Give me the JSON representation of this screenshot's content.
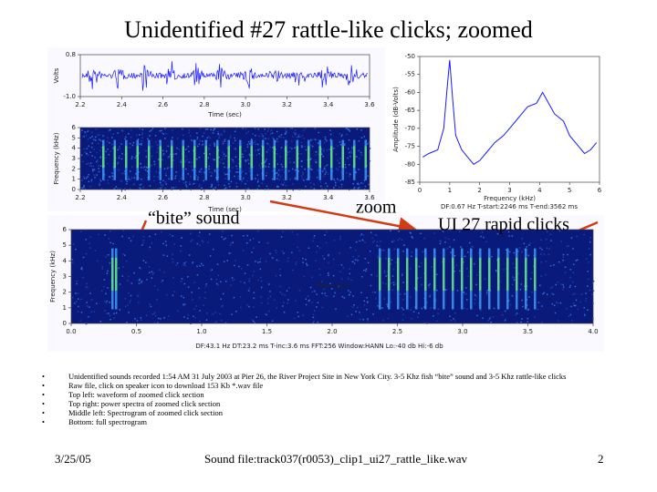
{
  "title": "Unidentified #27 rattle-like clicks; zoomed",
  "waveform": {
    "y_label": "Volts",
    "x_label": "Time (sec)",
    "ylim": [
      -1,
      0.8
    ],
    "yticks": [
      0.8,
      {
        "value": -1,
        "label": "-1.0"
      }
    ],
    "xlim": [
      2.2,
      3.6
    ],
    "xticks": [
      2.2,
      2.4,
      2.6,
      2.8,
      {
        "value": 3,
        "label": "3.0"
      },
      3.2,
      3.4,
      3.6
    ]
  },
  "spectrogram_zoom": {
    "y_label": "Frequency (kHz)",
    "x_label": "Time (sec)",
    "ylim": [
      0,
      6
    ],
    "yticks": [
      0,
      1,
      2,
      3,
      4,
      5,
      6
    ],
    "xlim": [
      2.2,
      3.6
    ],
    "xticks": [
      2.2,
      2.4,
      2.6,
      2.8,
      {
        "value": 3,
        "label": "3.0"
      },
      3.2,
      3.4,
      3.6
    ]
  },
  "spectrum": {
    "type": "line",
    "color": "#1a1aff",
    "y_label": "Amplitude (dB-Volts)",
    "x_label": "Frequency (kHz)",
    "info": "DF:0.67 Hz  T-start:2246 ms  T-end:3562 ms",
    "x": [
      0.1,
      0.3,
      0.6,
      0.8,
      0.9,
      1.0,
      1.1,
      1.2,
      1.4,
      1.6,
      1.8,
      2.0,
      2.2,
      2.5,
      2.8,
      3.0,
      3.3,
      3.6,
      3.9,
      4.1,
      4.3,
      4.5,
      4.8,
      5.0,
      5.3,
      5.5,
      5.7,
      5.9
    ],
    "values": [
      -78,
      -77,
      -76,
      -70,
      -60,
      -51,
      -62,
      -72,
      -76,
      -78,
      -80,
      -79,
      -77,
      -74,
      -72,
      -70,
      -67,
      -64,
      -63,
      -60,
      -63,
      -66,
      -68,
      -72,
      -75,
      -77,
      -76,
      -74
    ],
    "xlim": [
      0,
      6
    ],
    "xticks": [
      0,
      1,
      2,
      3,
      4,
      5,
      6
    ],
    "ylim": [
      -85,
      -50
    ],
    "yticks": [
      -50,
      -55,
      -60,
      -65,
      -70,
      -75,
      -80,
      -85
    ]
  },
  "spectrogram_full": {
    "y_label": "Frequency (kHz)",
    "x_label": "Time (sec)",
    "ylim": [
      0,
      6
    ],
    "yticks": [
      0,
      1,
      2,
      3,
      4,
      5,
      6
    ],
    "xlim": [
      0,
      4
    ],
    "xticks": [
      {
        "value": 0,
        "label": "0.0"
      },
      0.5,
      {
        "value": 1,
        "label": "1.0"
      },
      1.5,
      {
        "value": 2,
        "label": "2.0"
      },
      2.5,
      {
        "value": 3,
        "label": "3.0"
      },
      3.5,
      {
        "value": 4,
        "label": "4.0"
      }
    ],
    "info": "DF:43.1 Hz   DT:23.2 ms   T-inc:3.6 ms   FFT:256   Window:HANN   Lo:-40 db   Hi:-6 db"
  },
  "annotations": {
    "bite": "“bite” sound",
    "zoom": "zoom",
    "clicks": "UI 27 rapid clicks"
  },
  "bullets": [
    "Unidentified sounds recorded 1:54 AM 31 July 2003 at Pier 26, the River Project Site in New York City. 3-5 Khz fish “bite” sound and 3-5 Khz rattle-like clicks",
    "Raw file, click on speaker icon to download 153 Kb *.wav file",
    "Top left: waveform of zoomed click section",
    "Top right: power spectra of zoomed click section",
    "Middle left: Spectrogram of zoomed click section",
    "Bottom: full spectrogram"
  ],
  "footer": {
    "date": "3/25/05",
    "file": "Sound file:track037(r0053)_clip1_ui27_rattle_like.wav",
    "page": "2"
  }
}
